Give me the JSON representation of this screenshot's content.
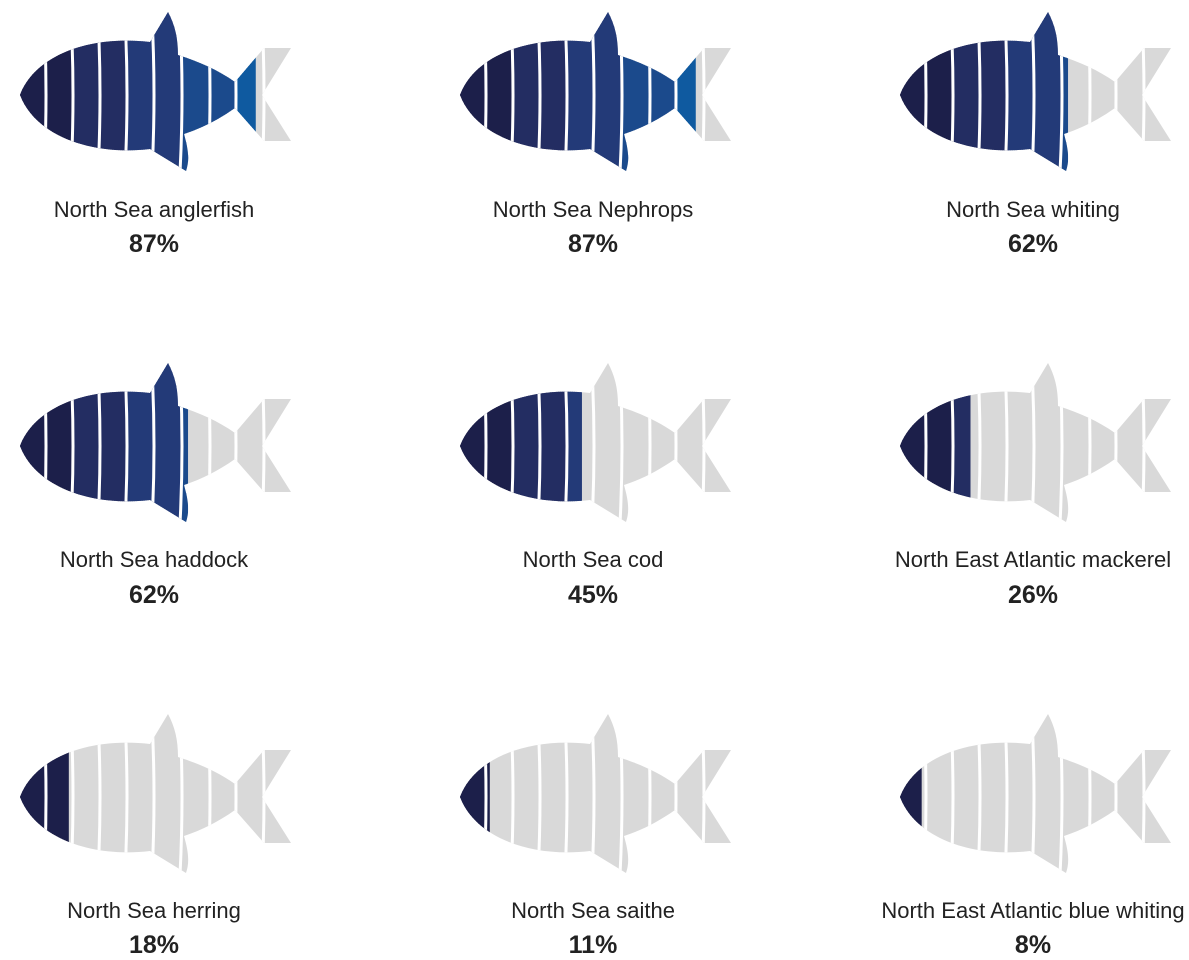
{
  "chart_data": {
    "type": "pictograph",
    "unit": "%",
    "categories": [
      "North Sea anglerfish",
      "North Sea Nephrops",
      "North Sea whiting",
      "North Sea haddock",
      "North Sea cod",
      "North East Atlantic mackerel",
      "North Sea herring",
      "North Sea saithe",
      "North East Atlantic blue whiting"
    ],
    "values": [
      87,
      87,
      62,
      62,
      45,
      26,
      18,
      11,
      8
    ],
    "value_labels": [
      "87%",
      "87%",
      "62%",
      "62%",
      "45%",
      "26%",
      "18%",
      "11%",
      "8%"
    ],
    "colors": {
      "empty": "#d9d9d9",
      "separator": "#ffffff",
      "fill_gradient": [
        "#1c1f4a",
        "#232d62",
        "#233a78",
        "#1b4a8c",
        "#0f5aa0"
      ]
    }
  }
}
